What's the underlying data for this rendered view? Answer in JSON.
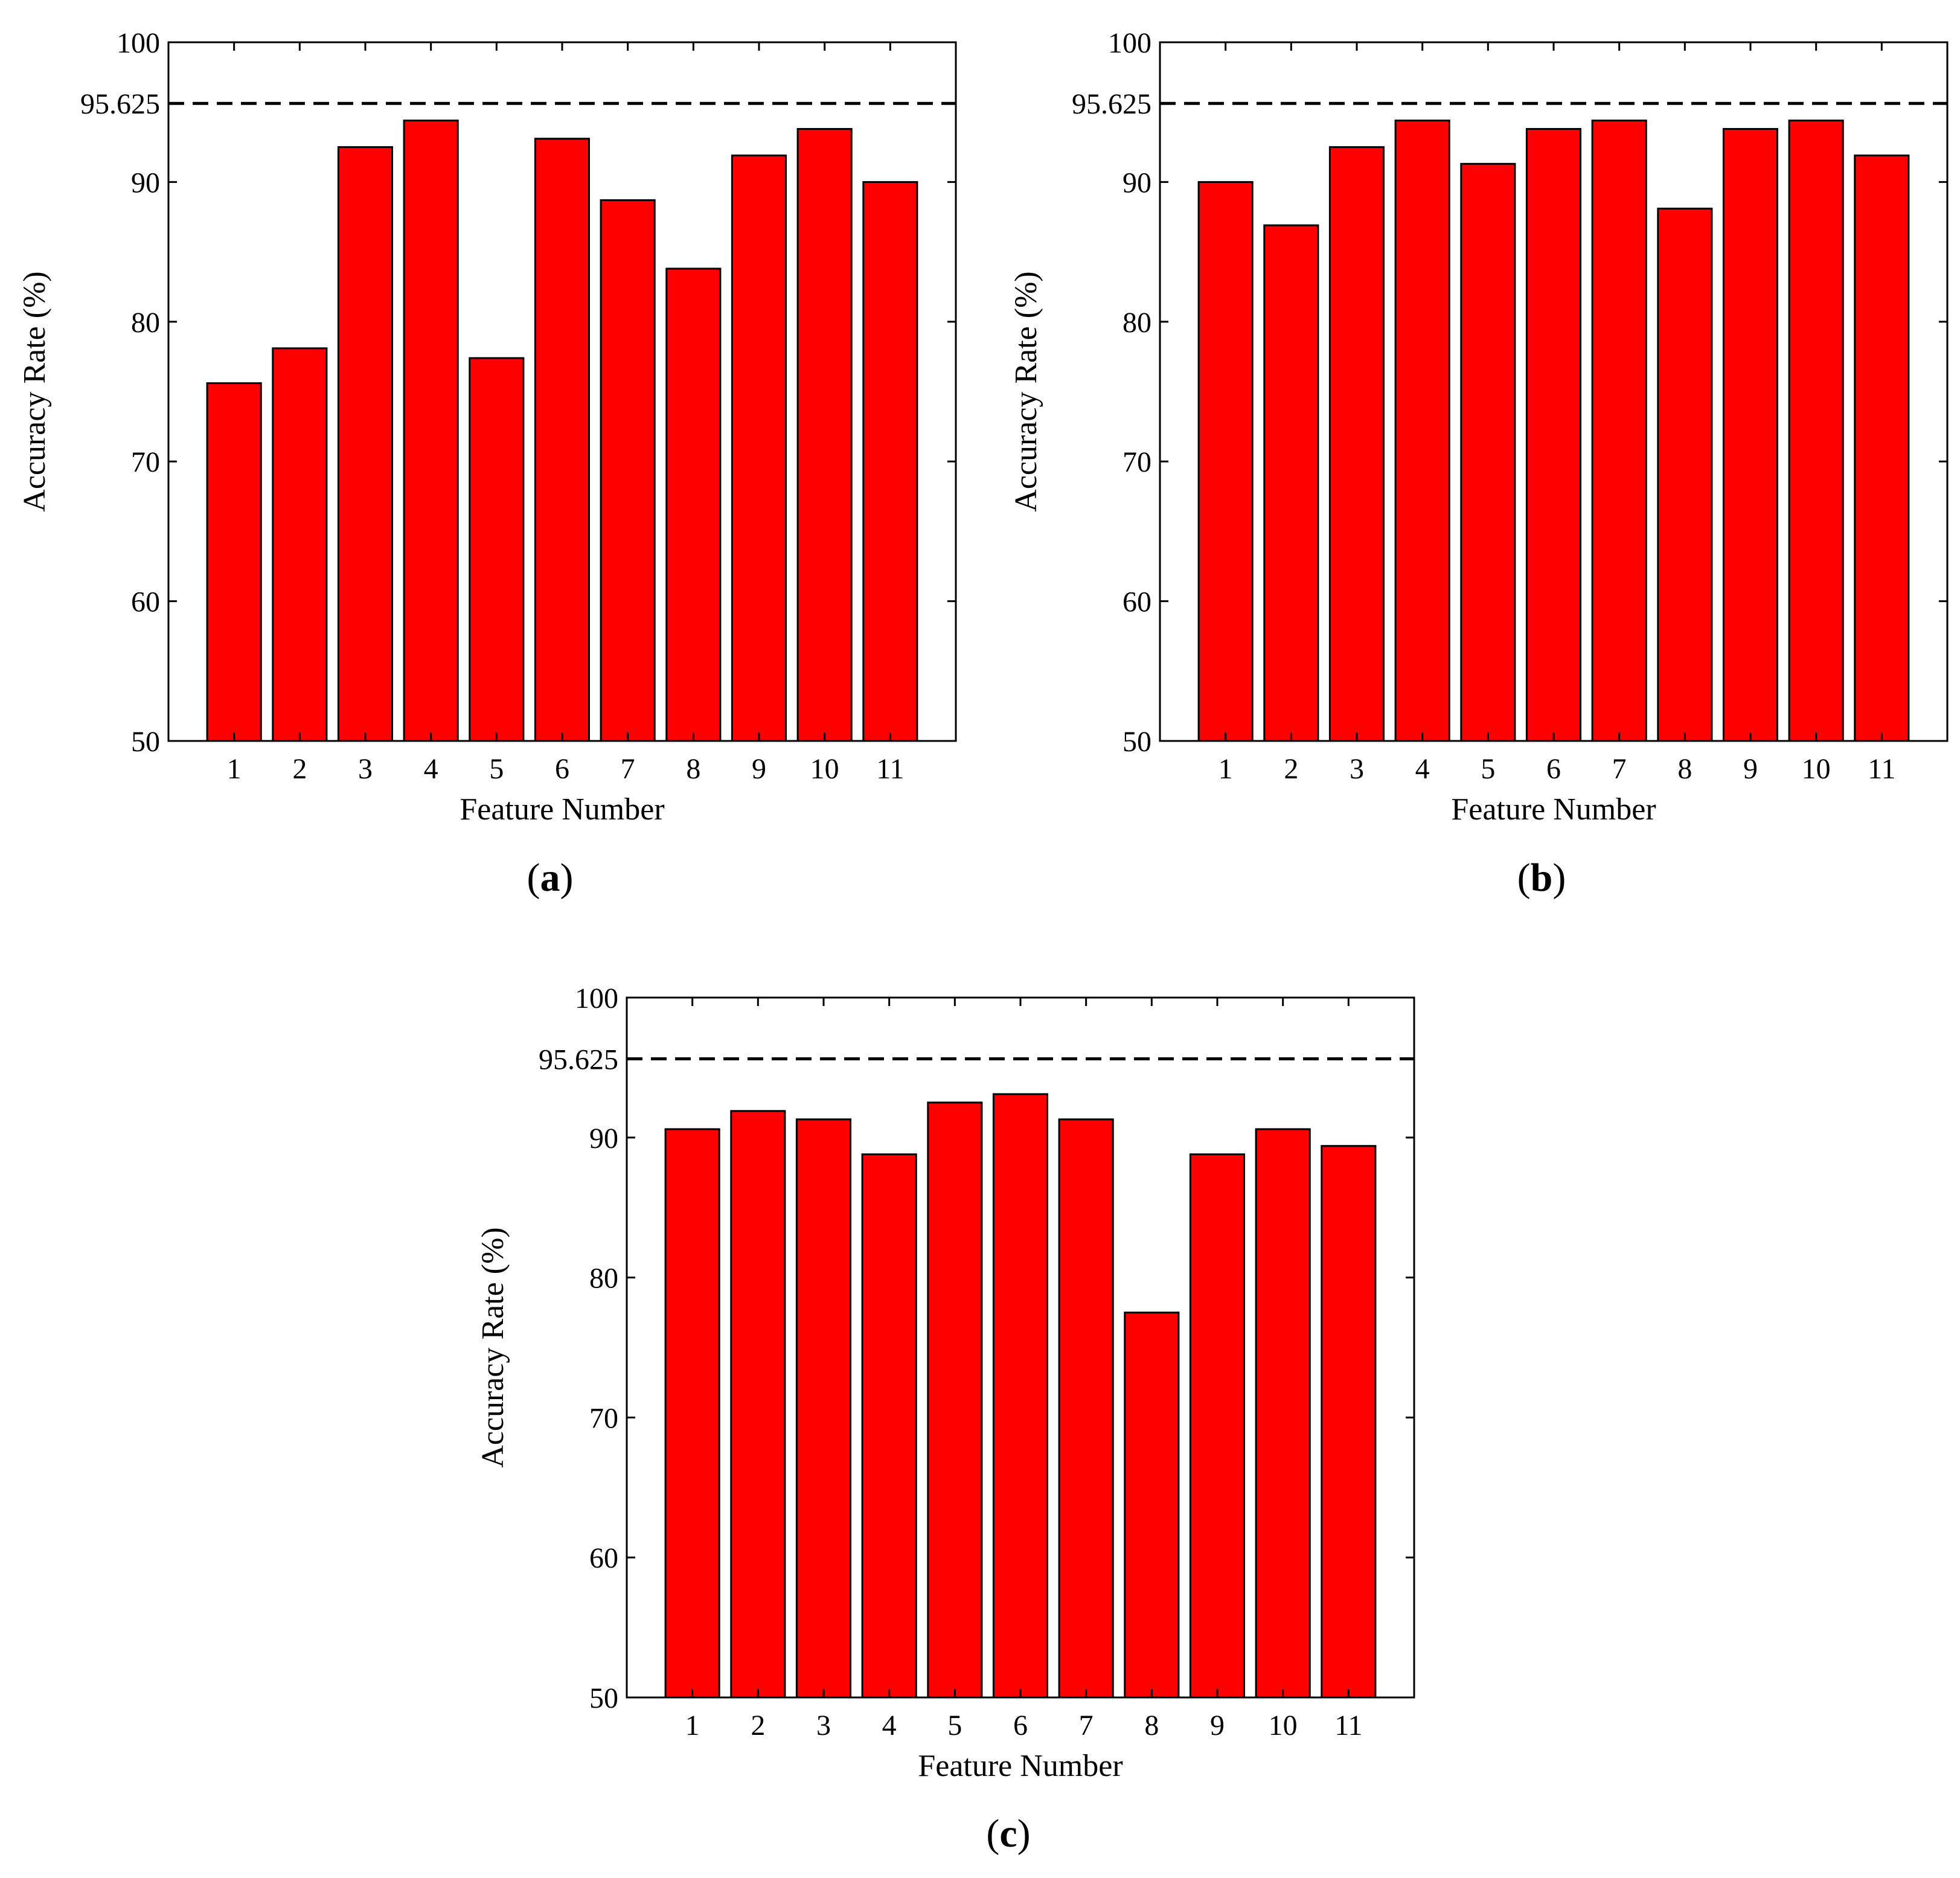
{
  "colors": {
    "bar_fill": "#ff0000",
    "bar_stroke": "#000000",
    "axis": "#000000",
    "reference_line": "#000000",
    "background": "#ffffff"
  },
  "chart_data": [
    {
      "type": "bar",
      "panel": "a",
      "panel_label": {
        "open": "(",
        "letter": "a",
        "close": ")"
      },
      "categories": [
        "1",
        "2",
        "3",
        "4",
        "5",
        "6",
        "7",
        "8",
        "9",
        "10",
        "11"
      ],
      "values": [
        75.6,
        78.1,
        92.5,
        94.4,
        77.4,
        93.1,
        88.7,
        83.8,
        91.9,
        93.8,
        90.0
      ],
      "reference_line": {
        "value": 95.625,
        "label": "95.625",
        "style": "dashed"
      },
      "title": "",
      "xlabel": "Feature Number",
      "ylabel": "Accuracy Rate (%)",
      "ylim": [
        50,
        100
      ],
      "yticks": [
        50,
        60,
        70,
        80,
        90,
        100
      ],
      "ytick_labels": [
        "50",
        "60",
        "70",
        "80",
        "90",
        "100"
      ],
      "grid": false
    },
    {
      "type": "bar",
      "panel": "b",
      "panel_label": {
        "open": "(",
        "letter": "b",
        "close": ")"
      },
      "categories": [
        "1",
        "2",
        "3",
        "4",
        "5",
        "6",
        "7",
        "8",
        "9",
        "10",
        "11"
      ],
      "values": [
        90.0,
        86.9,
        92.5,
        94.4,
        91.3,
        93.8,
        94.4,
        88.1,
        93.8,
        94.4,
        91.9
      ],
      "reference_line": {
        "value": 95.625,
        "label": "95.625",
        "style": "dashed"
      },
      "title": "",
      "xlabel": "Feature Number",
      "ylabel": "Accuracy Rate (%)",
      "ylim": [
        50,
        100
      ],
      "yticks": [
        50,
        60,
        70,
        80,
        90,
        100
      ],
      "ytick_labels": [
        "50",
        "60",
        "70",
        "80",
        "90",
        "100"
      ],
      "grid": false
    },
    {
      "type": "bar",
      "panel": "c",
      "panel_label": {
        "open": "(",
        "letter": "c",
        "close": ")"
      },
      "categories": [
        "1",
        "2",
        "3",
        "4",
        "5",
        "6",
        "7",
        "8",
        "9",
        "10",
        "11"
      ],
      "values": [
        90.6,
        91.9,
        91.3,
        88.8,
        92.5,
        93.1,
        91.3,
        77.5,
        88.8,
        90.6,
        89.4
      ],
      "reference_line": {
        "value": 95.625,
        "label": "95.625",
        "style": "dashed"
      },
      "title": "",
      "xlabel": "Feature Number",
      "ylabel": "Accuracy Rate (%)",
      "ylim": [
        50,
        100
      ],
      "yticks": [
        50,
        60,
        70,
        80,
        90,
        100
      ],
      "ytick_labels": [
        "50",
        "60",
        "70",
        "80",
        "90",
        "100"
      ],
      "grid": false
    }
  ]
}
